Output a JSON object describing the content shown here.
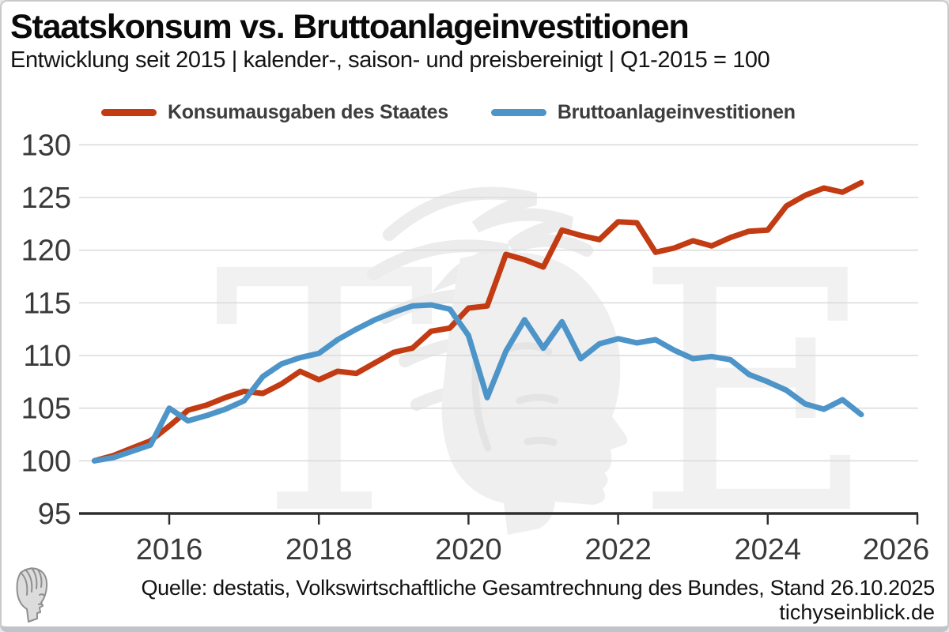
{
  "header": {
    "title": "Staatskonsum vs. Bruttoanlageinvestitionen",
    "subtitle": "Entwicklung seit 2015 | kalender-, saison- und preisbereinigt | Q1-2015 = 100"
  },
  "watermark": {
    "left_letter": "T",
    "right_letter": "E",
    "emblem": "hermes-head-watermark"
  },
  "footer": {
    "source": "Quelle: destatis, Volkswirtschaftliche Gesamtrechnung des Bundes, Stand 26.10.2025",
    "site": "tichyseinblick.de"
  },
  "colors": {
    "series_red": "#c23b12",
    "series_blue": "#4d94c9",
    "grid": "#dcdcdc",
    "axis": "#2f2f2f",
    "tick_label": "#3a3a3a"
  },
  "chart_data": {
    "type": "line",
    "title": "Staatskonsum vs. Bruttoanlageinvestitionen",
    "xlabel": "",
    "ylabel": "",
    "x_start": 2015.0,
    "x_step": 0.25,
    "xlim": [
      2015.0,
      2026.3
    ],
    "ylim": [
      95,
      130
    ],
    "grid": true,
    "legend_position": "top",
    "xticks": [
      2016,
      2018,
      2020,
      2022,
      2024,
      2026
    ],
    "yticks": [
      95,
      100,
      105,
      110,
      115,
      120,
      125,
      130
    ],
    "series": [
      {
        "name": "Konsumausgaben des Staates",
        "color": "#c23b12",
        "values": [
          100.0,
          100.5,
          101.2,
          101.9,
          103.3,
          104.8,
          105.3,
          106.0,
          106.6,
          106.4,
          107.3,
          108.5,
          107.7,
          108.5,
          108.3,
          109.3,
          110.3,
          110.7,
          112.3,
          112.6,
          114.5,
          114.7,
          119.6,
          119.1,
          118.4,
          121.9,
          121.4,
          121.0,
          122.7,
          122.6,
          119.8,
          120.2,
          120.9,
          120.4,
          121.2,
          121.8,
          121.9,
          124.2,
          125.2,
          125.9,
          125.5,
          126.4
        ]
      },
      {
        "name": "Bruttoanlageinvestitionen",
        "color": "#4d94c9",
        "values": [
          100.0,
          100.3,
          100.9,
          101.5,
          105.0,
          103.8,
          104.3,
          104.9,
          105.7,
          108.0,
          109.2,
          109.8,
          110.2,
          111.5,
          112.5,
          113.4,
          114.1,
          114.7,
          114.8,
          114.4,
          111.9,
          106.0,
          110.4,
          113.4,
          110.7,
          113.2,
          109.7,
          111.1,
          111.6,
          111.2,
          111.5,
          110.5,
          109.7,
          109.9,
          109.6,
          108.2,
          107.5,
          106.7,
          105.4,
          104.9,
          105.8,
          104.4
        ]
      }
    ]
  }
}
